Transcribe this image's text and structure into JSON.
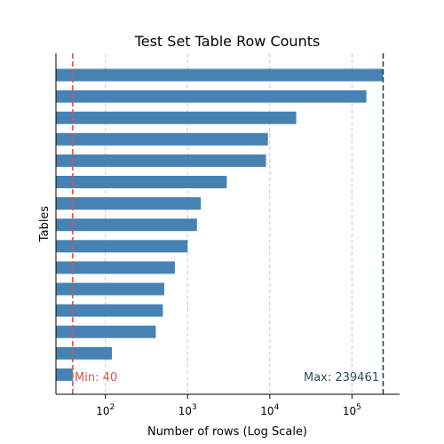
{
  "chart_data": {
    "type": "bar",
    "orientation": "horizontal",
    "title": "Test Set Table Row Counts",
    "xlabel": "Number of rows (Log Scale)",
    "ylabel": "Tables",
    "x_scale": "log",
    "xlim": [
      25,
      380000
    ],
    "x_ticks": [
      {
        "base": "10",
        "exp": "2",
        "value": 100
      },
      {
        "base": "10",
        "exp": "3",
        "value": 1000
      },
      {
        "base": "10",
        "exp": "4",
        "value": 10000
      },
      {
        "base": "10",
        "exp": "5",
        "value": 100000
      }
    ],
    "grid": "vertical-dashed",
    "bar_color": "#4682b4",
    "values": [
      239461,
      150000,
      21000,
      9500,
      9000,
      3000,
      1450,
      1300,
      1000,
      700,
      520,
      500,
      410,
      120,
      40
    ],
    "reference_lines": [
      {
        "value": 40,
        "label": "Min: 40",
        "color": "#d9534f"
      },
      {
        "value": 239461,
        "label": "Max: 239461",
        "color": "#1f4e3d"
      }
    ]
  }
}
